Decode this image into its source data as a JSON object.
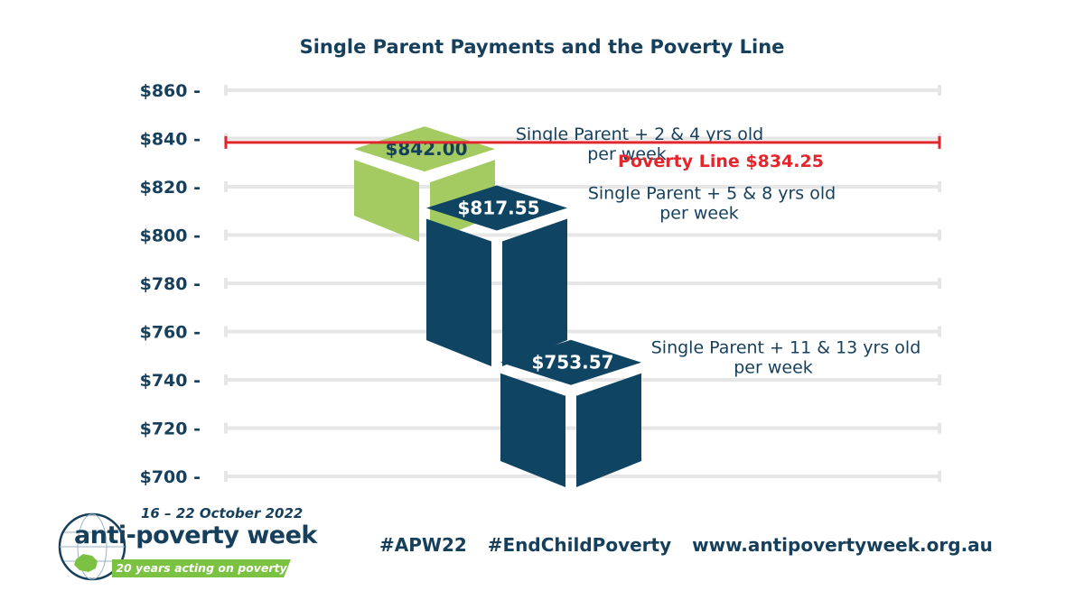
{
  "chart_data": {
    "type": "bar",
    "title": "Single Parent Payments and the Poverty Line",
    "ylim": [
      700,
      860
    ],
    "yticks": [
      {
        "value": 860,
        "label": "$860 -"
      },
      {
        "value": 840,
        "label": "$840 -"
      },
      {
        "value": 820,
        "label": "$820 -"
      },
      {
        "value": 800,
        "label": "$800 -"
      },
      {
        "value": 780,
        "label": "$780 -"
      },
      {
        "value": 760,
        "label": "$760 -"
      },
      {
        "value": 740,
        "label": "$740 -"
      },
      {
        "value": 720,
        "label": "$720 -"
      },
      {
        "value": 700,
        "label": "$700 -"
      }
    ],
    "categories": [
      "Single Parent + 2 & 4 yrs old",
      "Single Parent + 5 & 8 yrs old",
      "Single Parent + 11 & 13 yrs old"
    ],
    "values": [
      842.0,
      817.55,
      753.57
    ],
    "value_labels": [
      "$842.00",
      "$817.55",
      "$753.57"
    ],
    "unit_label": "per week",
    "bar_colors": [
      "#a3cb62",
      "#0f4463",
      "#0f4463"
    ],
    "reference_line": {
      "value": 834.25,
      "label": "Poverty Line $834.25",
      "color": "#e2262c"
    },
    "grid": true
  },
  "footer": {
    "hashtag1": "#APW22",
    "hashtag2": "#EndChildPoverty",
    "website": "www.antipovertyweek.org.au"
  },
  "logo": {
    "dates": "16 – 22 October 2022",
    "name": "anti-poverty week",
    "tagline": "20 years acting on poverty"
  },
  "colors": {
    "navy": "#163f5c",
    "green": "#a3cb62",
    "red": "#e2262c",
    "grid": "#e6e6e6"
  }
}
